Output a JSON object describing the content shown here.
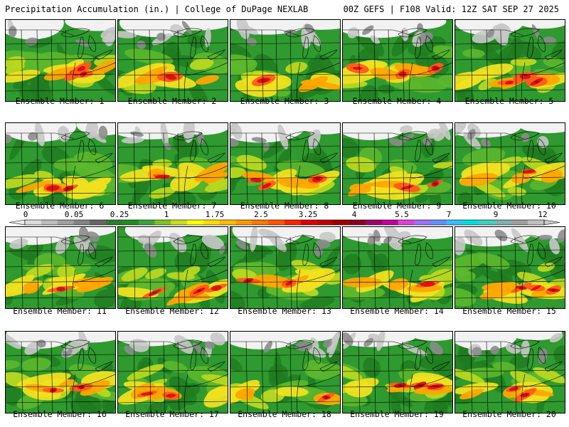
{
  "header": {
    "title_left": "Precipitation Accumulation (in.) | College of DuPage NEXLAB",
    "title_right": "00Z GEFS | F108 Valid: 12Z SAT SEP 27 2025"
  },
  "members": [
    {
      "label": "Ensemble Member: 1"
    },
    {
      "label": "Ensemble Member: 2"
    },
    {
      "label": "Ensemble Member: 3"
    },
    {
      "label": "Ensemble Member: 4"
    },
    {
      "label": "Ensemble Member: 5"
    },
    {
      "label": "Ensemble Member: 6"
    },
    {
      "label": "Ensemble Member: 7"
    },
    {
      "label": "Ensemble Member: 8"
    },
    {
      "label": "Ensemble Member: 9"
    },
    {
      "label": "Ensemble Member: 10"
    },
    {
      "label": "Ensemble Member: 11"
    },
    {
      "label": "Ensemble Member: 12"
    },
    {
      "label": "Ensemble Member: 13"
    },
    {
      "label": "Ensemble Member: 14"
    },
    {
      "label": "Ensemble Member: 15"
    },
    {
      "label": "Ensemble Member: 16"
    },
    {
      "label": "Ensemble Member: 17"
    },
    {
      "label": "Ensemble Member: 18"
    },
    {
      "label": "Ensemble Member: 19"
    },
    {
      "label": "Ensemble Member: 20"
    }
  ],
  "colorbar": {
    "tick_labels": [
      "0",
      "0.05",
      "0.25",
      "1",
      "1.75",
      "2.5",
      "3.25",
      "4",
      "5.5",
      "7",
      "9",
      "12"
    ],
    "colors": [
      "#dcdcdc",
      "#bdbdbd",
      "#a0a0a0",
      "#838383",
      "#666666",
      "#2e7d2e",
      "#1f8f1f",
      "#3aa53a",
      "#7fc41f",
      "#c8e01a",
      "#ffff00",
      "#ffdd00",
      "#ffbb00",
      "#ff9900",
      "#ff7700",
      "#ff5500",
      "#ff2200",
      "#e00000",
      "#c00000",
      "#a00000",
      "#8b0020",
      "#a0006a",
      "#c000a0",
      "#e040e0",
      "#a070ff",
      "#6090ff",
      "#30c0ff",
      "#00e0e0",
      "#40d0c0",
      "#80b0b0",
      "#a0a0a0",
      "#c0c0c0"
    ]
  },
  "palette": {
    "white": "#f2f2f2",
    "gray_light": "#c8c8c8",
    "gray_dark": "#8c8c8c",
    "green_dark": "#1f7a1f",
    "green": "#2f9a2f",
    "green_light": "#5cb82e",
    "yellow_green": "#b8d820",
    "yellow": "#f0e020",
    "orange": "#ffa500",
    "red_orange": "#ff5a1a",
    "red": "#e01010",
    "dark_red": "#a00018",
    "purple": "#7a2a8a"
  }
}
